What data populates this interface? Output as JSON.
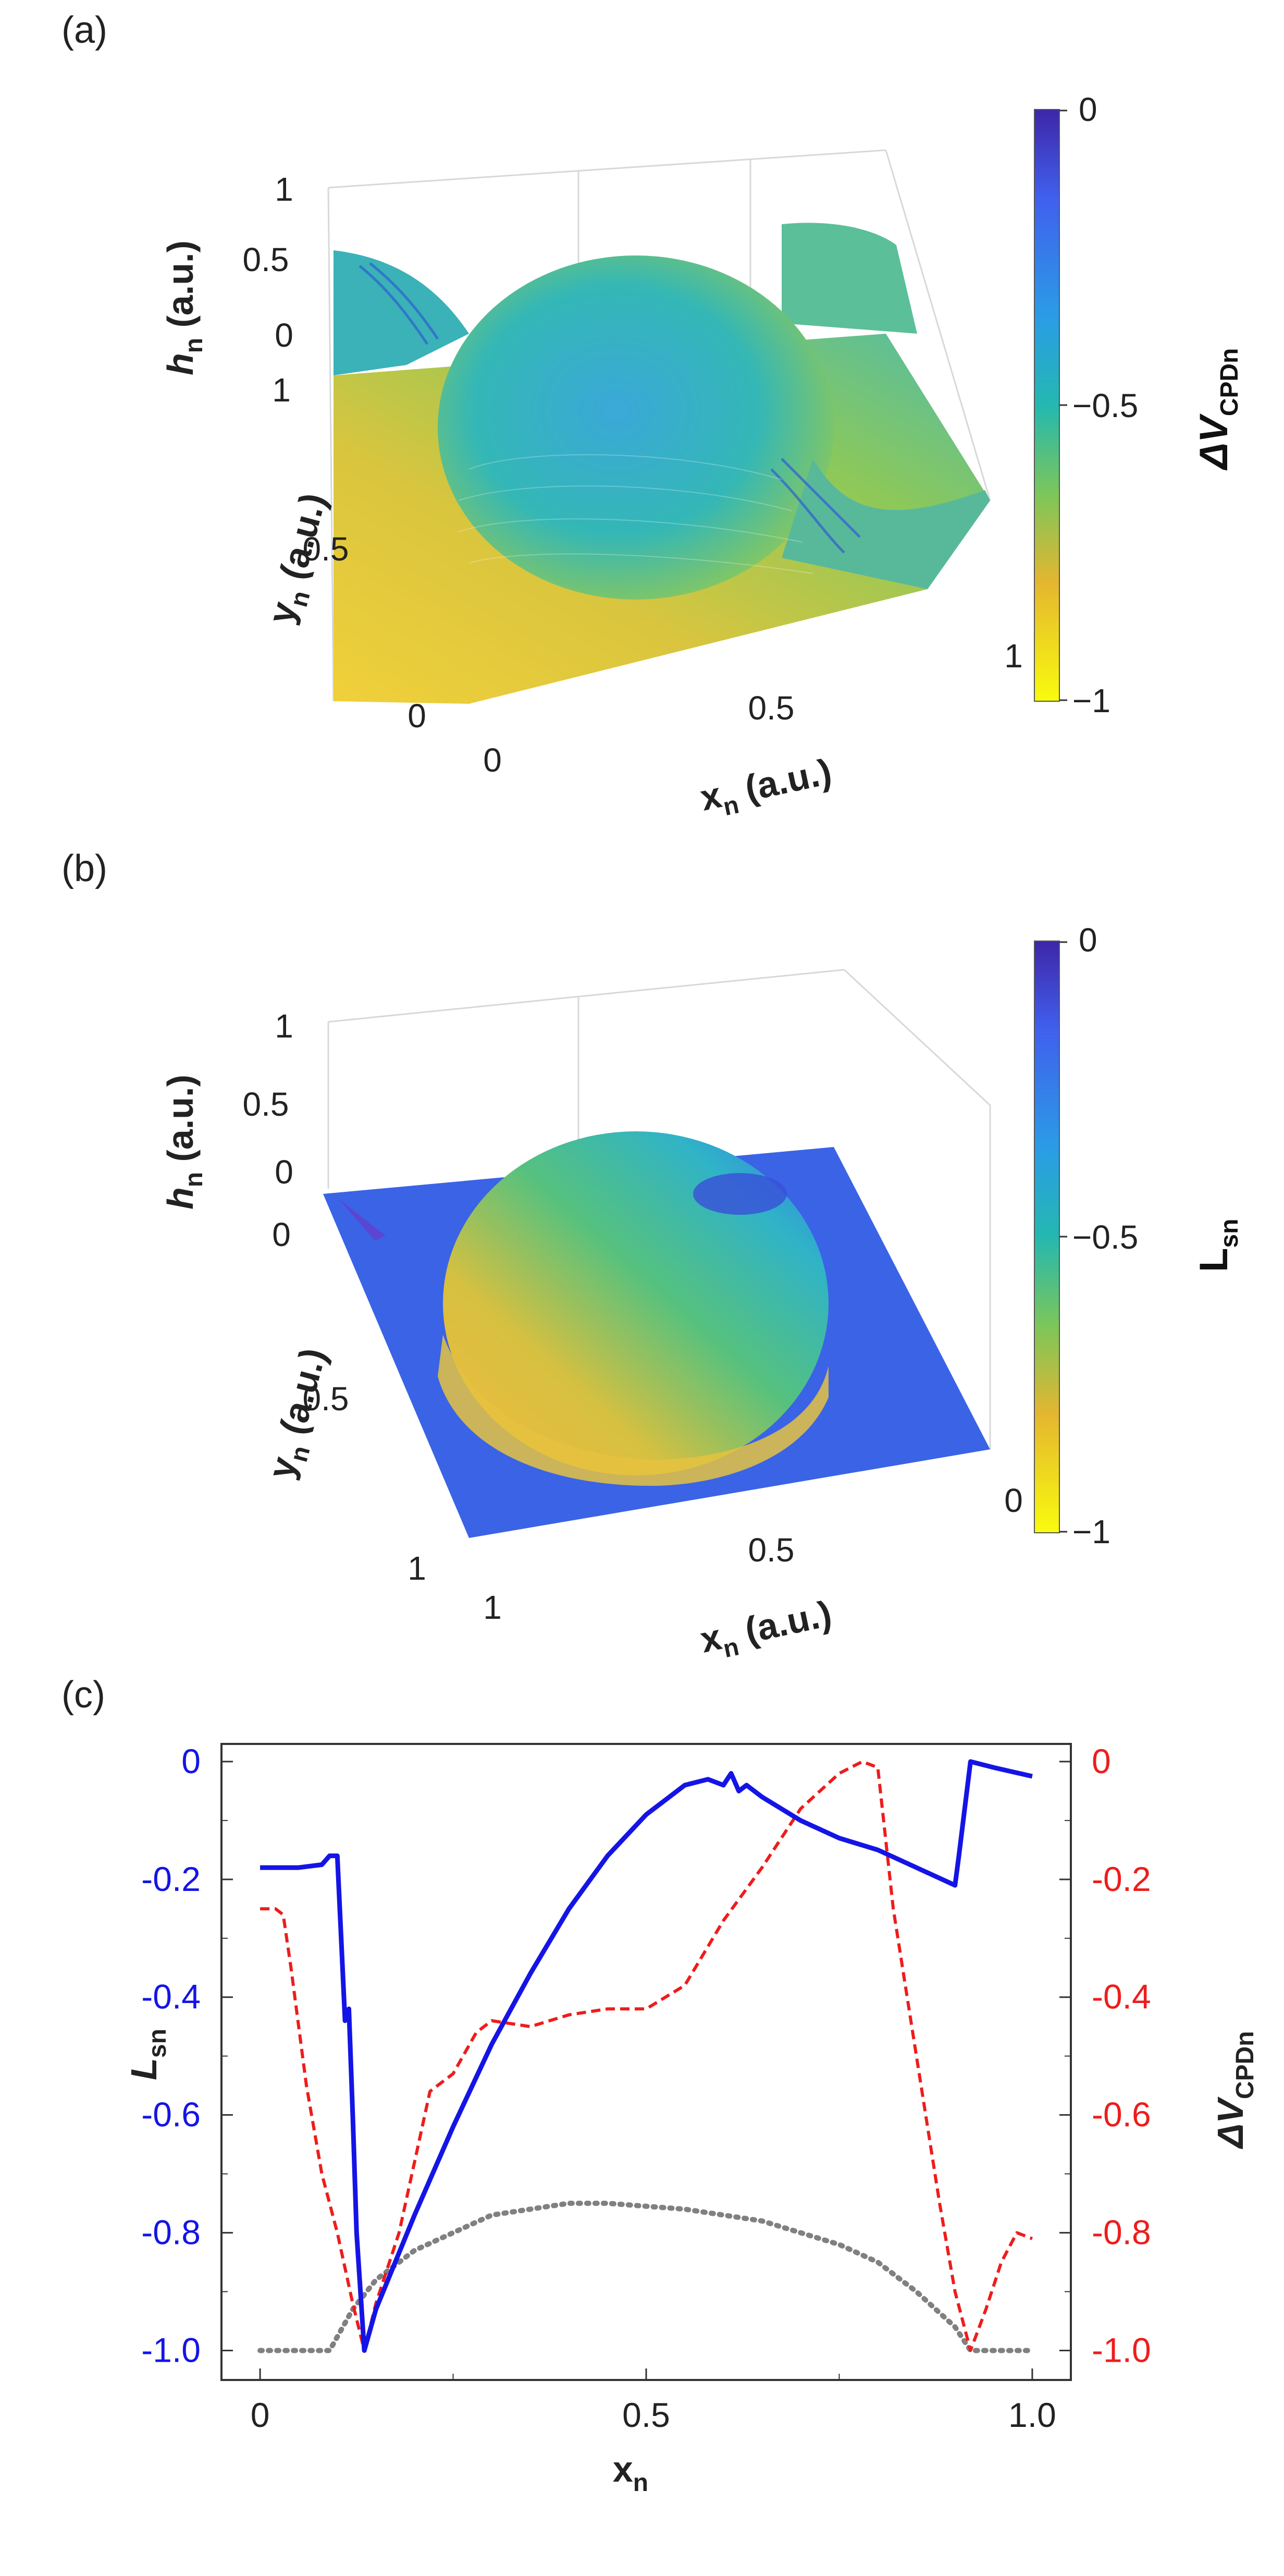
{
  "colors": {
    "blue": "#1414e6",
    "red": "#ee1c1c",
    "gray": "#808080",
    "parula_top": "#3e26a8",
    "parula_mid": "#24b8b0",
    "parula_bot": "#f9fb0e"
  },
  "panel_a": {
    "label": "(a)",
    "z_axis_label": "h",
    "z_axis_sub": "n",
    "z_axis_unit": " (a.u.)",
    "y_axis_label": "y",
    "y_axis_sub": "n",
    "y_axis_unit": " (a.u.)",
    "x_axis_label": "x",
    "x_axis_sub": "n",
    "x_axis_unit": " (a.u.)",
    "z_ticks": [
      "1",
      "0.5",
      "0"
    ],
    "y_ticks": [
      "1",
      "0.5",
      "0"
    ],
    "x_ticks": [
      "0",
      "0.5",
      "1"
    ],
    "colorbar_ticks": [
      "0",
      "−0.5",
      "−1"
    ],
    "colorbar_label_main": "ΔV",
    "colorbar_label_sub": "CPDn"
  },
  "panel_b": {
    "label": "(b)",
    "z_axis_label": "h",
    "z_axis_sub": "n",
    "z_axis_unit": " (a.u.)",
    "y_axis_label": "y",
    "y_axis_sub": "n",
    "y_axis_unit": " (a.u.)",
    "x_axis_label": "x",
    "x_axis_sub": "n",
    "x_axis_unit": " (a.u.)",
    "z_ticks": [
      "1",
      "0.5",
      "0"
    ],
    "y_ticks": [
      "0",
      "0.5",
      "1"
    ],
    "x_ticks": [
      "1",
      "0.5",
      "0"
    ],
    "colorbar_ticks": [
      "0",
      "−0.5",
      "−1"
    ],
    "colorbar_label_main": "L",
    "colorbar_label_sub": "sn"
  },
  "chart_data": {
    "type": "line",
    "title": "(c)",
    "xlabel": "x",
    "xlabel_sub": "n",
    "ylabel_left": "L",
    "ylabel_left_sub": "sn",
    "ylabel_right": "ΔV",
    "ylabel_right_sub": "CPDn",
    "xlim": [
      -0.05,
      1.05
    ],
    "ylim": [
      -1.05,
      0.03
    ],
    "x_ticks": [
      {
        "value": 0,
        "label": "0"
      },
      {
        "value": 0.5,
        "label": "0.5"
      },
      {
        "value": 1.0,
        "label": "1.0"
      }
    ],
    "y_ticks_left": [
      {
        "value": 0,
        "label": "0"
      },
      {
        "value": -0.2,
        "label": "-0.2"
      },
      {
        "value": -0.4,
        "label": "-0.4"
      },
      {
        "value": -0.6,
        "label": "-0.6"
      },
      {
        "value": -0.8,
        "label": "-0.8"
      },
      {
        "value": -1.0,
        "label": "-1.0"
      }
    ],
    "y_ticks_right": [
      {
        "value": 0,
        "label": "0"
      },
      {
        "value": -0.2,
        "label": "-0.2"
      },
      {
        "value": -0.4,
        "label": "-0.4"
      },
      {
        "value": -0.6,
        "label": "-0.6"
      },
      {
        "value": -0.8,
        "label": "-0.8"
      },
      {
        "value": -1.0,
        "label": "-1.0"
      }
    ],
    "series": [
      {
        "name": "L_sn",
        "style": "solid",
        "color": "#1414e6",
        "points": [
          [
            0,
            -0.18
          ],
          [
            0.05,
            -0.18
          ],
          [
            0.08,
            -0.175
          ],
          [
            0.09,
            -0.16
          ],
          [
            0.1,
            -0.16
          ],
          [
            0.11,
            -0.44
          ],
          [
            0.115,
            -0.42
          ],
          [
            0.12,
            -0.6
          ],
          [
            0.125,
            -0.8
          ],
          [
            0.135,
            -1.0
          ],
          [
            0.15,
            -0.93
          ],
          [
            0.2,
            -0.77
          ],
          [
            0.25,
            -0.62
          ],
          [
            0.3,
            -0.48
          ],
          [
            0.35,
            -0.36
          ],
          [
            0.4,
            -0.25
          ],
          [
            0.45,
            -0.16
          ],
          [
            0.5,
            -0.09
          ],
          [
            0.55,
            -0.04
          ],
          [
            0.58,
            -0.03
          ],
          [
            0.6,
            -0.04
          ],
          [
            0.61,
            -0.02
          ],
          [
            0.62,
            -0.05
          ],
          [
            0.63,
            -0.04
          ],
          [
            0.65,
            -0.06
          ],
          [
            0.7,
            -0.1
          ],
          [
            0.75,
            -0.13
          ],
          [
            0.8,
            -0.15
          ],
          [
            0.85,
            -0.18
          ],
          [
            0.9,
            -0.21
          ],
          [
            0.905,
            -0.16
          ],
          [
            0.92,
            -0.0
          ],
          [
            0.95,
            -0.01
          ],
          [
            1.0,
            -0.025
          ]
        ]
      },
      {
        "name": "ΔV_CPDn",
        "style": "dashed",
        "color": "#ee1c1c",
        "points": [
          [
            0,
            -0.25
          ],
          [
            0.02,
            -0.25
          ],
          [
            0.03,
            -0.26
          ],
          [
            0.04,
            -0.35
          ],
          [
            0.06,
            -0.55
          ],
          [
            0.08,
            -0.7
          ],
          [
            0.1,
            -0.8
          ],
          [
            0.12,
            -0.92
          ],
          [
            0.135,
            -1.0
          ],
          [
            0.15,
            -0.92
          ],
          [
            0.18,
            -0.8
          ],
          [
            0.2,
            -0.68
          ],
          [
            0.22,
            -0.56
          ],
          [
            0.25,
            -0.53
          ],
          [
            0.28,
            -0.46
          ],
          [
            0.3,
            -0.44
          ],
          [
            0.35,
            -0.45
          ],
          [
            0.4,
            -0.43
          ],
          [
            0.45,
            -0.42
          ],
          [
            0.5,
            -0.42
          ],
          [
            0.55,
            -0.38
          ],
          [
            0.6,
            -0.27
          ],
          [
            0.65,
            -0.18
          ],
          [
            0.7,
            -0.08
          ],
          [
            0.75,
            -0.02
          ],
          [
            0.78,
            0.0
          ],
          [
            0.8,
            -0.01
          ],
          [
            0.82,
            -0.25
          ],
          [
            0.85,
            -0.5
          ],
          [
            0.88,
            -0.75
          ],
          [
            0.9,
            -0.9
          ],
          [
            0.92,
            -1.0
          ],
          [
            0.94,
            -0.93
          ],
          [
            0.96,
            -0.85
          ],
          [
            0.98,
            -0.8
          ],
          [
            1.0,
            -0.81
          ]
        ]
      },
      {
        "name": "h_n",
        "style": "dotted",
        "color": "#808080",
        "points": [
          [
            0,
            -1.0
          ],
          [
            0.06,
            -1.0
          ],
          [
            0.09,
            -1.0
          ],
          [
            0.12,
            -0.93
          ],
          [
            0.15,
            -0.88
          ],
          [
            0.2,
            -0.83
          ],
          [
            0.25,
            -0.8
          ],
          [
            0.3,
            -0.77
          ],
          [
            0.35,
            -0.76
          ],
          [
            0.4,
            -0.75
          ],
          [
            0.45,
            -0.75
          ],
          [
            0.5,
            -0.755
          ],
          [
            0.55,
            -0.76
          ],
          [
            0.6,
            -0.77
          ],
          [
            0.65,
            -0.78
          ],
          [
            0.7,
            -0.8
          ],
          [
            0.75,
            -0.82
          ],
          [
            0.8,
            -0.85
          ],
          [
            0.85,
            -0.9
          ],
          [
            0.9,
            -0.96
          ],
          [
            0.92,
            -1.0
          ],
          [
            0.95,
            -1.0
          ],
          [
            1.0,
            -1.0
          ]
        ]
      }
    ]
  }
}
